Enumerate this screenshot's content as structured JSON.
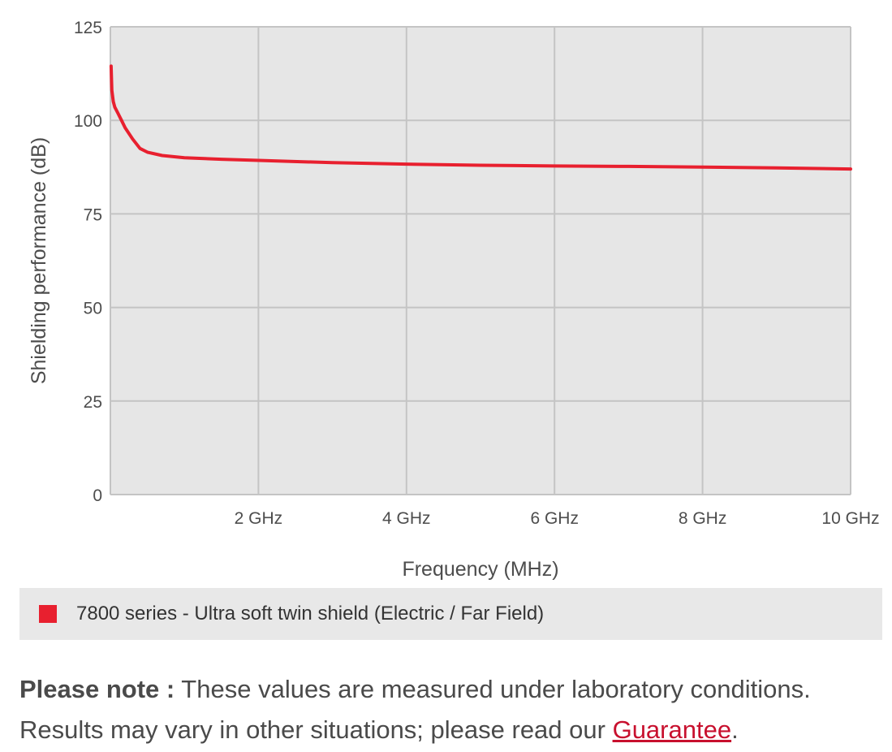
{
  "chart_data": {
    "type": "line",
    "title": "",
    "xlabel": "Frequency (MHz)",
    "ylabel": "Shielding performance (dB)",
    "xlim": [
      0,
      10000
    ],
    "ylim": [
      0,
      125
    ],
    "grid": true,
    "x_ticks": [
      {
        "value": 2000,
        "label": "2 GHz"
      },
      {
        "value": 4000,
        "label": "4 GHz"
      },
      {
        "value": 6000,
        "label": "6 GHz"
      },
      {
        "value": 8000,
        "label": "8 GHz"
      },
      {
        "value": 10000,
        "label": "10 GHz"
      }
    ],
    "y_ticks": [
      {
        "value": 0,
        "label": "0"
      },
      {
        "value": 25,
        "label": "25"
      },
      {
        "value": 50,
        "label": "50"
      },
      {
        "value": 75,
        "label": "75"
      },
      {
        "value": 100,
        "label": "100"
      },
      {
        "value": 125,
        "label": "125"
      }
    ],
    "series": [
      {
        "name": "7800 series - Ultra soft twin shield (Electric / Far Field)",
        "color": "#e8202f",
        "x": [
          10,
          20,
          40,
          60,
          100,
          150,
          200,
          300,
          400,
          500,
          700,
          1000,
          1500,
          2000,
          3000,
          4000,
          5000,
          6000,
          7000,
          8000,
          9000,
          10000
        ],
        "y": [
          114.5,
          108,
          105,
          103.5,
          102,
          100,
          98,
          95,
          92.5,
          91.5,
          90.6,
          90,
          89.6,
          89.3,
          88.7,
          88.3,
          88,
          87.8,
          87.7,
          87.5,
          87.3,
          87
        ]
      }
    ],
    "legend_position": "bottom"
  },
  "legend": {
    "label": "7800 series - Ultra soft twin shield (Electric / Far Field)",
    "color": "#e8202f"
  },
  "note": {
    "lead": "Please note :",
    "text": " These values are measured under laboratory conditions. Results may vary in other situations; please read our ",
    "link": "Guarantee",
    "end": "."
  }
}
